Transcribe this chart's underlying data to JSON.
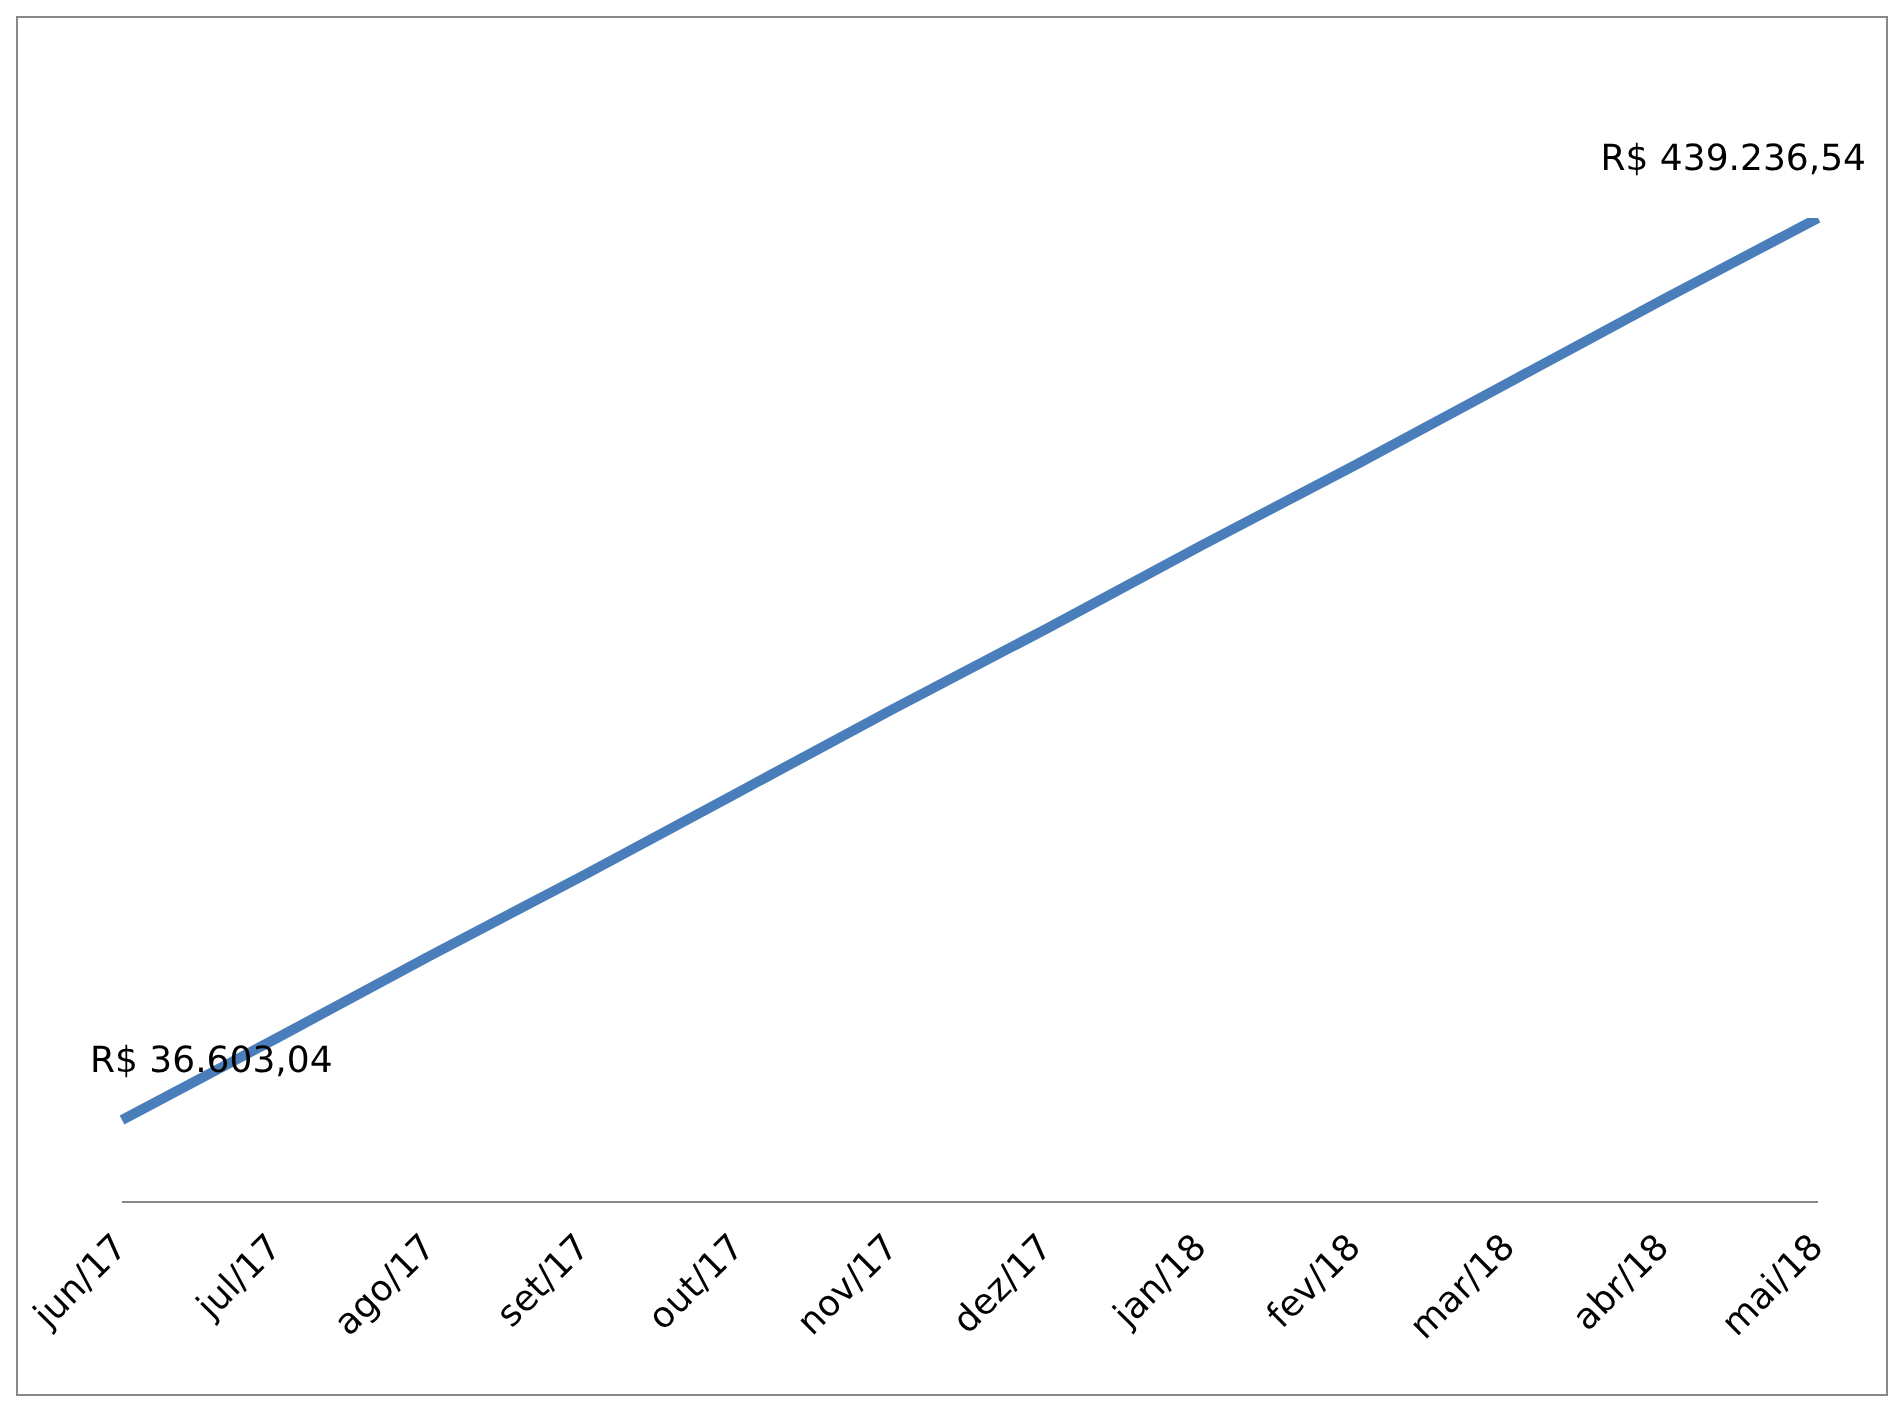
{
  "chart_data": {
    "type": "line",
    "categories": [
      "jun/17",
      "jul/17",
      "ago/17",
      "set/17",
      "out/17",
      "nov/17",
      "dez/17",
      "jan/18",
      "fev/18",
      "mar/18",
      "abr/18",
      "mai/18"
    ],
    "series": [
      {
        "color": "#4a7ebb",
        "values": [
          36603.04,
          73000,
          110000,
          146000,
          183000,
          220000,
          256000,
          293000,
          329000,
          366000,
          403000,
          439236.54
        ],
        "value_labels": [
          "R$ 36.603,04",
          null,
          null,
          null,
          null,
          null,
          null,
          null,
          null,
          null,
          null,
          "R$ 439.236,54"
        ]
      }
    ],
    "tick_labels": "x",
    "marker": "none",
    "line_style": "solid"
  }
}
